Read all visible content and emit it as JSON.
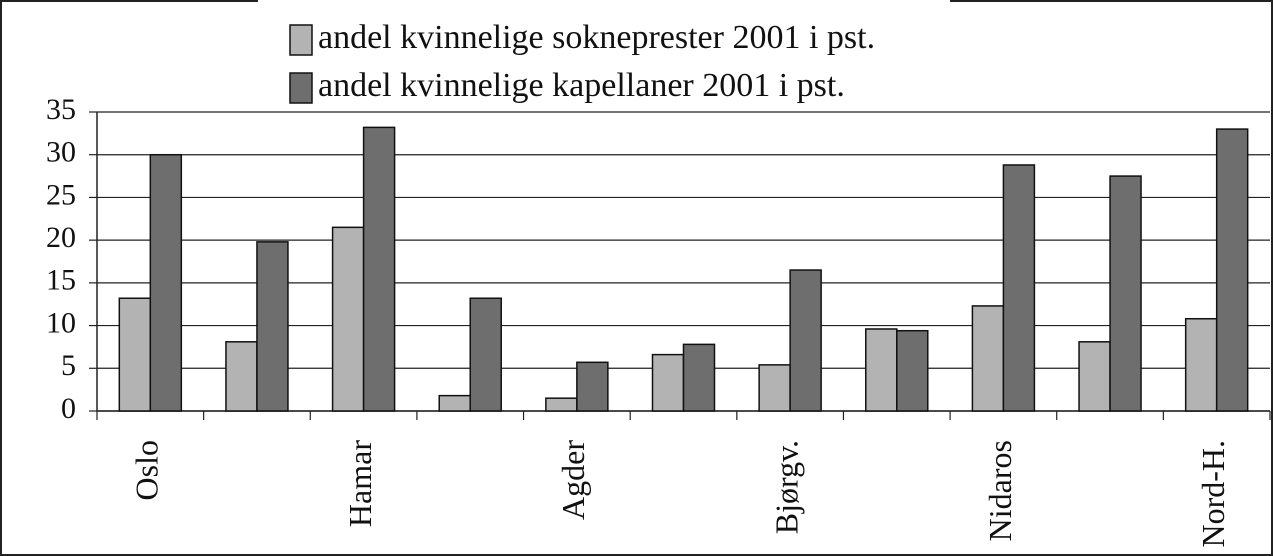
{
  "chart_data": {
    "type": "bar",
    "categories": [
      "Oslo",
      null,
      "Hamar",
      null,
      "Agder",
      null,
      "Bjørgv.",
      null,
      "Nidaros",
      null,
      "Nord-H."
    ],
    "series": [
      {
        "name": "andel kvinnelige sokneprester 2001 i pst.",
        "color": "#b3b3b3",
        "values": [
          13.2,
          8.1,
          21.5,
          1.8,
          1.5,
          6.6,
          5.4,
          9.6,
          12.3,
          8.1,
          10.8
        ]
      },
      {
        "name": "andel kvinnelige kapellaner 2001 i pst.",
        "color": "#6e6e6e",
        "values": [
          30,
          19.8,
          33.2,
          13.2,
          5.7,
          7.8,
          16.5,
          9.4,
          28.8,
          27.5,
          33
        ]
      }
    ],
    "ylim": [
      0,
      35
    ],
    "yticks": [
      0,
      5,
      10,
      15,
      20,
      25,
      30,
      35
    ],
    "grid": true,
    "legend": "top"
  }
}
